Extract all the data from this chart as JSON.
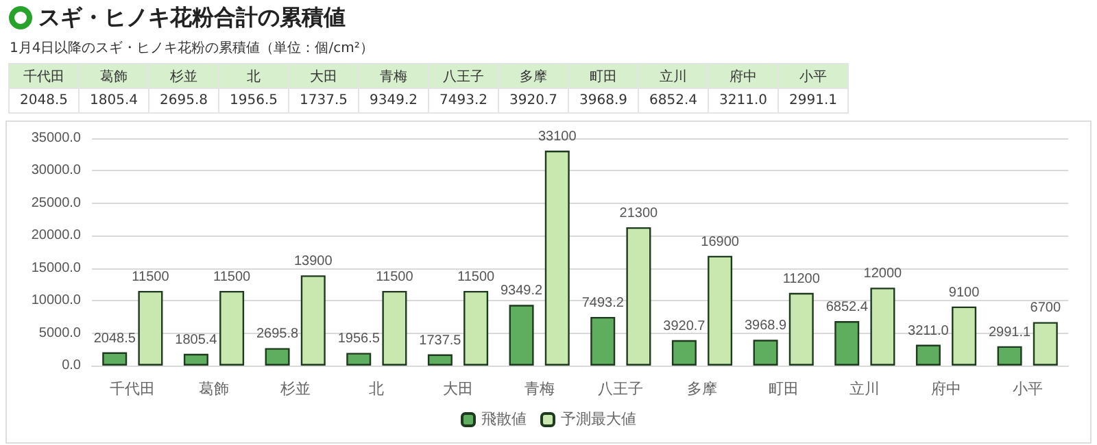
{
  "chart_data": {
    "type": "bar",
    "title": "スギ・ヒノキ花粉合計の累積値",
    "subtitle": "1月4日以降のスギ・ヒノキ花粉の累積値（単位：個/cm²）",
    "categories": [
      "千代田",
      "葛飾",
      "杉並",
      "北",
      "大田",
      "青梅",
      "八王子",
      "多摩",
      "町田",
      "立川",
      "府中",
      "小平"
    ],
    "series": [
      {
        "name": "飛散値",
        "color": "#5fae5f",
        "values": [
          2048.5,
          1805.4,
          2695.8,
          1956.5,
          1737.5,
          9349.2,
          7493.2,
          3920.7,
          3968.9,
          6852.4,
          3211.0,
          2991.1
        ],
        "value_labels": [
          "2048.5",
          "1805.4",
          "2695.8",
          "1956.5",
          "1737.5",
          "9349.2",
          "7493.2",
          "3920.7",
          "3968.9",
          "6852.4",
          "3211.0",
          "2991.1"
        ]
      },
      {
        "name": "予測最大値",
        "color": "#c8e8b0",
        "values": [
          11500,
          11500,
          13900,
          11500,
          11500,
          33100,
          21300,
          16900,
          11200,
          12000,
          9100,
          6700
        ],
        "value_labels": [
          "11500",
          "11500",
          "13900",
          "11500",
          "11500",
          "33100",
          "21300",
          "16900",
          "11200",
          "12000",
          "9100",
          "6700"
        ]
      }
    ],
    "ylim": [
      0,
      35000
    ],
    "yticks": [
      {
        "value": 0,
        "label": "0.0"
      },
      {
        "value": 5000,
        "label": "5000.0"
      },
      {
        "value": 10000,
        "label": "10000.0"
      },
      {
        "value": 15000,
        "label": "15000.0"
      },
      {
        "value": 20000,
        "label": "20000.0"
      },
      {
        "value": 25000,
        "label": "25000.0"
      },
      {
        "value": 30000,
        "label": "30000.0"
      },
      {
        "value": 35000,
        "label": "35000.0"
      }
    ],
    "grid": "y",
    "legend": "bottom"
  }
}
